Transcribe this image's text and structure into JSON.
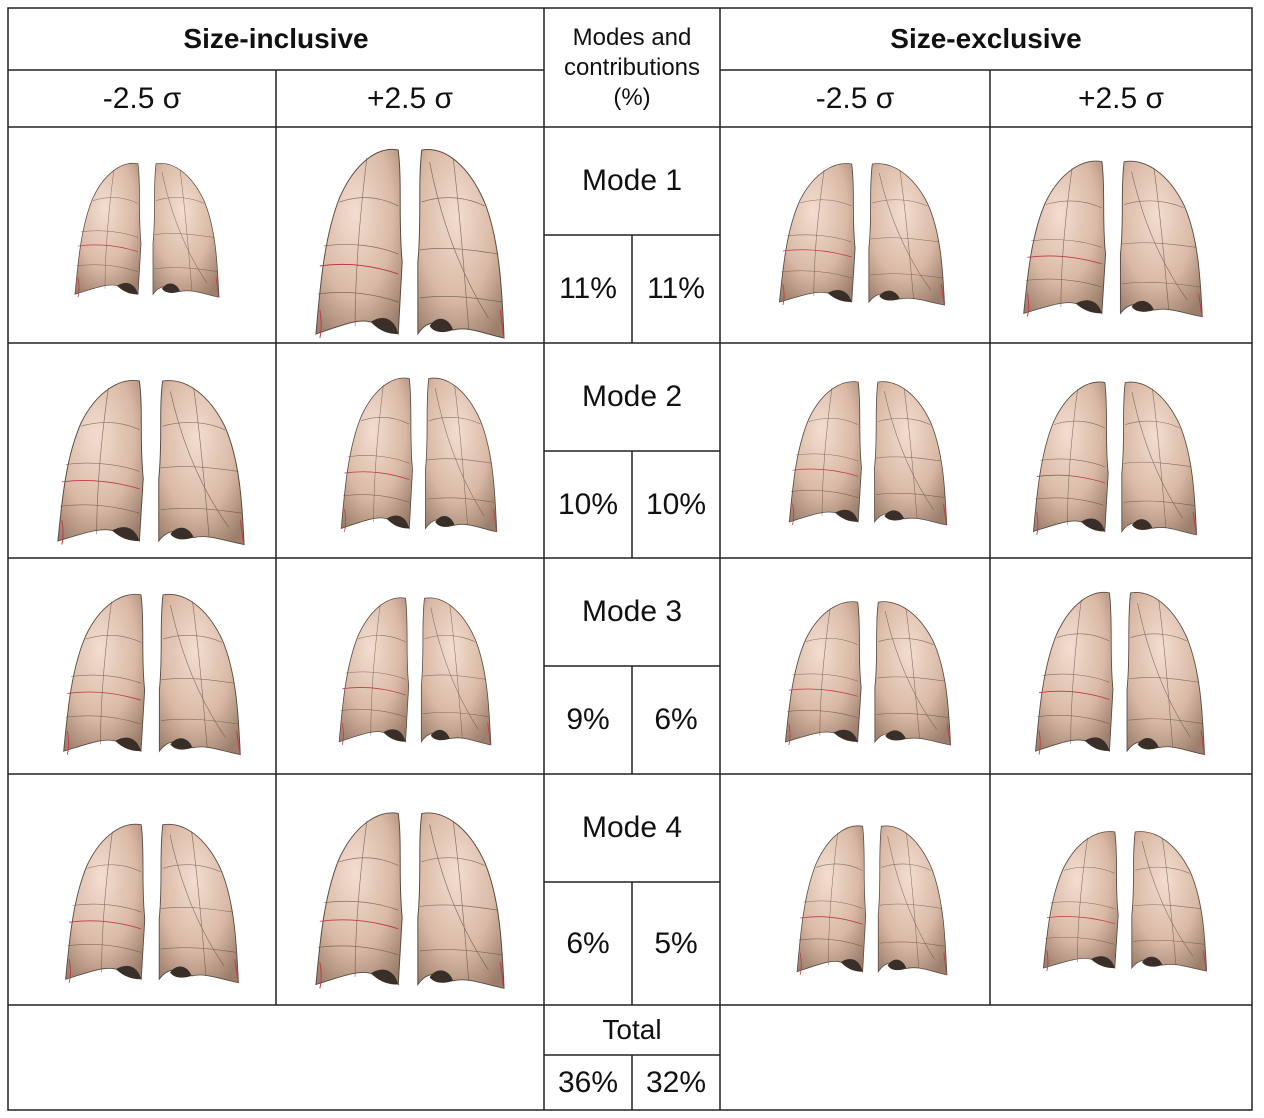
{
  "headers": {
    "left_group": "Size-inclusive",
    "right_group": "Size-exclusive",
    "middle_line1": "Modes and",
    "middle_line2": "contributions",
    "middle_line3": "(%)",
    "sigma_minus": "-2.5 σ",
    "sigma_plus": "+2.5 σ"
  },
  "modes": [
    {
      "label": "Mode 1",
      "inclusive_pct": "11%",
      "exclusive_pct": "11%"
    },
    {
      "label": "Mode 2",
      "inclusive_pct": "10%",
      "exclusive_pct": "10%"
    },
    {
      "label": "Mode 3",
      "inclusive_pct": "9%",
      "exclusive_pct": "6%"
    },
    {
      "label": "Mode 4",
      "inclusive_pct": "6%",
      "exclusive_pct": "5%"
    }
  ],
  "total": {
    "label": "Total",
    "inclusive_pct": "36%",
    "exclusive_pct": "32%"
  },
  "colors": {
    "lung_light": "#f3ddd0",
    "lung_mid": "#d9b9a5",
    "lung_dark": "#9c7e6c",
    "fissure_red": "#c0394b",
    "grid_line": "#5a4a40"
  }
}
